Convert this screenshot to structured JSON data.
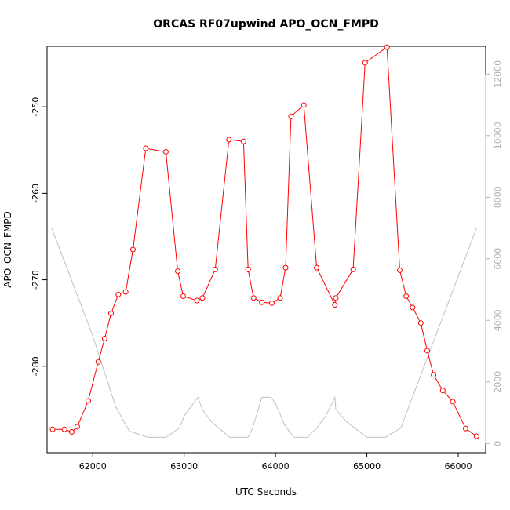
{
  "chart_data": {
    "type": "line",
    "title": "ORCAS RF07upwind APO_OCN_FMPD",
    "xlabel": "UTC Seconds",
    "ylabel": "APO_OCN_FMPD",
    "xlim": [
      61500,
      66300
    ],
    "ylim": [
      -290,
      -243
    ],
    "y2lim": [
      -300,
      12900
    ],
    "x_ticks": [
      62000,
      63000,
      64000,
      65000,
      66000
    ],
    "y_ticks": [
      -280,
      -270,
      -260,
      -250
    ],
    "y2_ticks": [
      0,
      2000,
      4000,
      6000,
      8000,
      10000,
      12000
    ],
    "grid": false,
    "series": [
      {
        "color": "#ff0000",
        "axis": "left",
        "markers": "open-circle",
        "x": [
          61560,
          61690,
          61770,
          61830,
          61950,
          62060,
          62130,
          62200,
          62280,
          62360,
          62440,
          62580,
          62800,
          62930,
          62990,
          63140,
          63200,
          63340,
          63490,
          63650,
          63700,
          63760,
          63850,
          63960,
          64050,
          64110,
          64170,
          64310,
          64450,
          64650,
          64660,
          64850,
          64980,
          65220,
          65360,
          65430,
          65500,
          65590,
          65660,
          65730,
          65830,
          65940,
          66080,
          66200
        ],
        "y": [
          -287.3,
          -287.3,
          -287.6,
          -287.0,
          -284.0,
          -279.5,
          -276.8,
          -273.9,
          -271.7,
          -271.4,
          -266.5,
          -254.8,
          -255.2,
          -269.0,
          -271.9,
          -272.4,
          -272.1,
          -268.8,
          -253.8,
          -254.0,
          -268.8,
          -272.1,
          -272.6,
          -272.7,
          -272.1,
          -268.6,
          -251.1,
          -249.8,
          -268.6,
          -272.9,
          -272.1,
          -268.8,
          -244.9,
          -243.1,
          -268.9,
          -271.9,
          -273.2,
          -275.0,
          -278.2,
          -281.0,
          -282.8,
          -284.1,
          -287.2,
          -288.1
        ]
      },
      {
        "color": "#c0c0c0",
        "axis": "right",
        "markers": "none",
        "x": [
          61550,
          62000,
          62250,
          62400,
          62600,
          62800,
          62950,
          63000,
          63150,
          63200,
          63300,
          63500,
          63700,
          63750,
          63850,
          63950,
          64000,
          64100,
          64200,
          64350,
          64450,
          64550,
          64650,
          64660,
          64780,
          65000,
          65200,
          65370,
          66200
        ],
        "y": [
          7000,
          3500,
          1200,
          400,
          200,
          200,
          500,
          900,
          1500,
          1100,
          700,
          200,
          200,
          500,
          1500,
          1500,
          1300,
          600,
          200,
          200,
          500,
          900,
          1500,
          1100,
          700,
          200,
          200,
          500,
          7000
        ]
      }
    ]
  }
}
